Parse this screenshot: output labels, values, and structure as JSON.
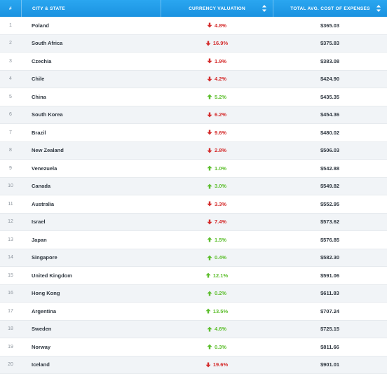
{
  "header": {
    "rank": "#",
    "city": "CITY & STATE",
    "currency": "CURRENCY VALUATION",
    "cost": "TOTAL AVG. COST OF EXPENSES"
  },
  "colors": {
    "header": "#1e98e6",
    "up": "#5cbe2c",
    "down": "#d42b2b"
  },
  "rows": [
    {
      "rank": "1",
      "city": "Poland",
      "direction": "down",
      "change": "4.8%",
      "cost": "$365.03"
    },
    {
      "rank": "2",
      "city": "South Africa",
      "direction": "down",
      "change": "16.9%",
      "cost": "$375.83"
    },
    {
      "rank": "3",
      "city": "Czechia",
      "direction": "down",
      "change": "1.9%",
      "cost": "$383.08"
    },
    {
      "rank": "4",
      "city": "Chile",
      "direction": "down",
      "change": "4.2%",
      "cost": "$424.90"
    },
    {
      "rank": "5",
      "city": "China",
      "direction": "up",
      "change": "5.2%",
      "cost": "$435.35"
    },
    {
      "rank": "6",
      "city": "South Korea",
      "direction": "down",
      "change": "6.2%",
      "cost": "$454.36"
    },
    {
      "rank": "7",
      "city": "Brazil",
      "direction": "down",
      "change": "9.6%",
      "cost": "$480.02"
    },
    {
      "rank": "8",
      "city": "New Zealand",
      "direction": "down",
      "change": "2.8%",
      "cost": "$506.03"
    },
    {
      "rank": "9",
      "city": "Venezuela",
      "direction": "up",
      "change": "1.0%",
      "cost": "$542.88"
    },
    {
      "rank": "10",
      "city": "Canada",
      "direction": "up",
      "change": "3.0%",
      "cost": "$549.82"
    },
    {
      "rank": "11",
      "city": "Australia",
      "direction": "down",
      "change": "3.3%",
      "cost": "$552.95"
    },
    {
      "rank": "12",
      "city": "Israel",
      "direction": "down",
      "change": "7.4%",
      "cost": "$573.62"
    },
    {
      "rank": "13",
      "city": "Japan",
      "direction": "up",
      "change": "1.5%",
      "cost": "$576.85"
    },
    {
      "rank": "14",
      "city": "Singapore",
      "direction": "up",
      "change": "0.4%",
      "cost": "$582.30"
    },
    {
      "rank": "15",
      "city": "United Kingdom",
      "direction": "up",
      "change": "12.1%",
      "cost": "$591.06"
    },
    {
      "rank": "16",
      "city": "Hong Kong",
      "direction": "up",
      "change": "0.2%",
      "cost": "$611.83"
    },
    {
      "rank": "17",
      "city": "Argentina",
      "direction": "up",
      "change": "13.5%",
      "cost": "$707.24"
    },
    {
      "rank": "18",
      "city": "Sweden",
      "direction": "up",
      "change": "4.6%",
      "cost": "$725.15"
    },
    {
      "rank": "19",
      "city": "Norway",
      "direction": "up",
      "change": "0.3%",
      "cost": "$811.66"
    },
    {
      "rank": "20",
      "city": "Iceland",
      "direction": "down",
      "change": "19.6%",
      "cost": "$901.01"
    }
  ]
}
